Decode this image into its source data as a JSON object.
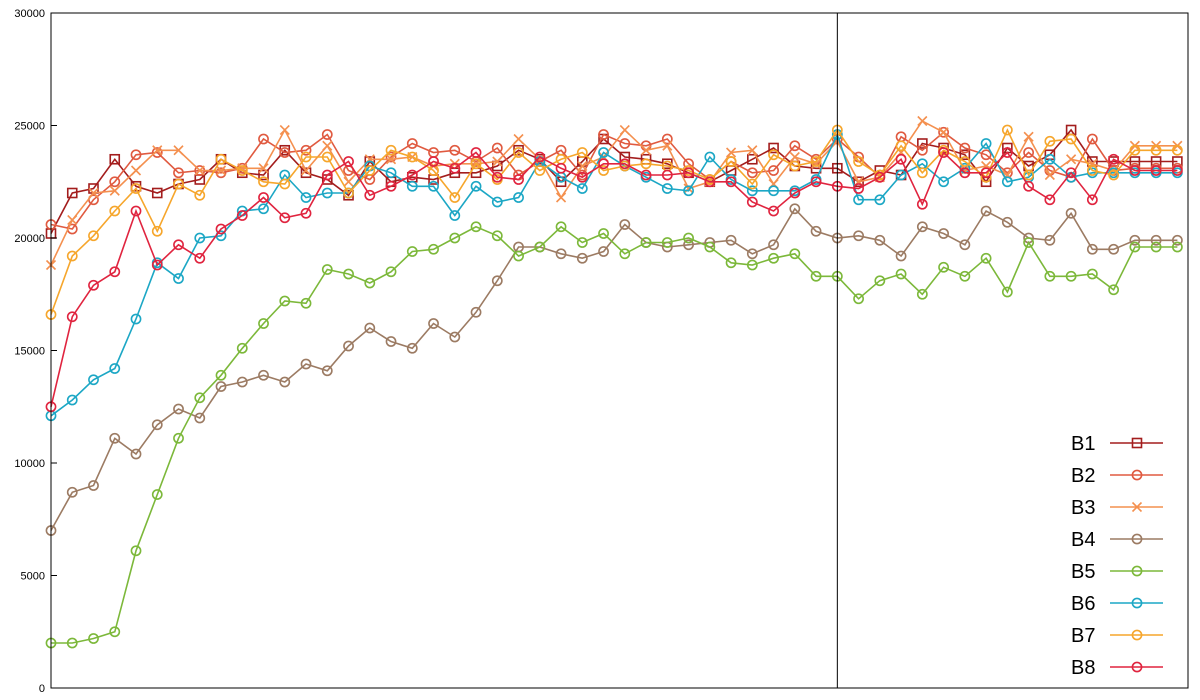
{
  "chart_data": {
    "type": "line",
    "title": "",
    "xlabel": "",
    "ylabel": "",
    "x": [
      1,
      2,
      3,
      4,
      5,
      6,
      7,
      8,
      9,
      10,
      11,
      12,
      13,
      14,
      15,
      16,
      17,
      18,
      19,
      20,
      21,
      22,
      23,
      24,
      25,
      26,
      27,
      28,
      29,
      30,
      31,
      32,
      33,
      34,
      35,
      36,
      37,
      38,
      39,
      40,
      41,
      42,
      43,
      44,
      45,
      46,
      47,
      48,
      49,
      50,
      51,
      52,
      53,
      54
    ],
    "xlim": [
      1,
      54.5
    ],
    "ylim": [
      0,
      30000
    ],
    "yticks": [
      0,
      5000,
      10000,
      15000,
      20000,
      25000,
      30000
    ],
    "ytick_labels": [
      "0",
      "5000",
      "10000",
      "15000",
      "20000",
      "25000",
      "30000"
    ],
    "vertical_line_x": 38,
    "legend_position": "bottom-right",
    "grid": false,
    "series": [
      {
        "name": "B1",
        "color": "#a31d1d",
        "marker": "square",
        "values": [
          20200,
          22000,
          22200,
          23500,
          22300,
          22000,
          22400,
          22600,
          23500,
          22900,
          22800,
          23900,
          22900,
          22600,
          21900,
          23400,
          22500,
          22700,
          22600,
          22900,
          22900,
          23200,
          23900,
          23500,
          22500,
          23400,
          24400,
          23600,
          23500,
          23300,
          22900,
          22500,
          23000,
          23500,
          24000,
          23200,
          23100,
          23100,
          22500,
          23000,
          22800,
          24200,
          24000,
          23700,
          22500,
          24000,
          23200,
          23700,
          24800,
          23400,
          23400,
          23400,
          23400,
          23400
        ]
      },
      {
        "name": "B2",
        "color": "#e05a40",
        "marker": "circle",
        "values": [
          20600,
          20400,
          21700,
          22500,
          23700,
          23800,
          22900,
          23000,
          22900,
          23100,
          24400,
          23800,
          23900,
          24600,
          23000,
          22600,
          23600,
          24200,
          23800,
          23900,
          23400,
          24000,
          22800,
          23400,
          23900,
          22800,
          24600,
          24200,
          24100,
          24400,
          23300,
          22600,
          23400,
          22900,
          23000,
          24100,
          23500,
          24400,
          23600,
          22700,
          24500,
          23900,
          24700,
          24000,
          23700,
          22900,
          23800,
          23000,
          22700,
          24400,
          23000,
          23100,
          23100,
          23100
        ]
      },
      {
        "name": "B3",
        "color": "#f4904f",
        "marker": "x",
        "values": [
          18800,
          20800,
          22000,
          22100,
          23000,
          23900,
          23900,
          23000,
          23000,
          23100,
          23100,
          24800,
          23000,
          24100,
          22500,
          23500,
          23500,
          23600,
          23200,
          23300,
          23300,
          23400,
          24400,
          23500,
          21800,
          23200,
          23600,
          24800,
          23900,
          24100,
          22200,
          22500,
          23800,
          23900,
          22400,
          23600,
          23300,
          24300,
          22500,
          22700,
          23800,
          25200,
          24700,
          23000,
          23200,
          22800,
          24500,
          22800,
          23500,
          23300,
          23000,
          24100,
          24100,
          24100
        ]
      },
      {
        "name": "B4",
        "color": "#9c7b63",
        "marker": "circle",
        "values": [
          7000,
          8700,
          9000,
          11100,
          10400,
          11700,
          12400,
          12000,
          13400,
          13600,
          13900,
          13600,
          14400,
          14100,
          15200,
          16000,
          15400,
          15100,
          16200,
          15600,
          16700,
          18100,
          19600,
          19600,
          19300,
          19100,
          19400,
          20600,
          19800,
          19600,
          19700,
          19800,
          19900,
          19300,
          19700,
          21300,
          20300,
          20000,
          20100,
          19900,
          19200,
          20500,
          20200,
          19700,
          21200,
          20700,
          20000,
          19900,
          21100,
          19500,
          19500,
          19900,
          19900,
          19900
        ]
      },
      {
        "name": "B5",
        "color": "#7cb83a",
        "marker": "circle",
        "values": [
          2000,
          2000,
          2200,
          2500,
          6100,
          8600,
          11100,
          12900,
          13900,
          15100,
          16200,
          17200,
          17100,
          18600,
          18400,
          18000,
          18500,
          19400,
          19500,
          20000,
          20500,
          20100,
          19200,
          19600,
          20500,
          19800,
          20200,
          19300,
          19800,
          19800,
          20000,
          19600,
          18900,
          18800,
          19100,
          19300,
          18300,
          18300,
          17300,
          18100,
          18400,
          17500,
          18700,
          18300,
          19100,
          17600,
          19800,
          18300,
          18300,
          18400,
          17700,
          19600,
          19600,
          19600
        ]
      },
      {
        "name": "B6",
        "color": "#1ca7c5",
        "marker": "circle",
        "values": [
          12100,
          12800,
          13700,
          14200,
          16400,
          18900,
          18200,
          20000,
          20100,
          21200,
          21300,
          22800,
          21800,
          22000,
          22000,
          23200,
          22900,
          22300,
          22300,
          21000,
          22300,
          21600,
          21800,
          23400,
          22700,
          22200,
          23800,
          23200,
          22700,
          22200,
          22100,
          23600,
          22600,
          22100,
          22100,
          22100,
          22600,
          24600,
          21700,
          21700,
          22800,
          23300,
          22500,
          23100,
          24200,
          22500,
          22700,
          23500,
          22700,
          22900,
          22900,
          22900,
          22900,
          22900
        ]
      },
      {
        "name": "B7",
        "color": "#f6a62c",
        "marker": "circle",
        "values": [
          16600,
          19200,
          20100,
          21200,
          22200,
          20300,
          22400,
          21900,
          23500,
          23000,
          22500,
          22400,
          23600,
          23600,
          22000,
          23000,
          23900,
          23600,
          23000,
          21800,
          23300,
          22600,
          23800,
          23000,
          23500,
          23800,
          23000,
          23200,
          23300,
          23200,
          23000,
          22600,
          23400,
          22400,
          23700,
          23200,
          23400,
          24800,
          23400,
          22800,
          24100,
          22900,
          23900,
          23400,
          22700,
          24800,
          22800,
          24300,
          24400,
          23000,
          22800,
          23900,
          23900,
          23900
        ]
      },
      {
        "name": "B8",
        "color": "#e0243f",
        "marker": "circle",
        "values": [
          12500,
          16500,
          17900,
          18500,
          21200,
          18800,
          19700,
          19100,
          20400,
          21000,
          21800,
          20900,
          21100,
          22800,
          23400,
          21900,
          22300,
          22800,
          23400,
          23100,
          23800,
          22700,
          22600,
          23600,
          23100,
          22700,
          23300,
          23300,
          22800,
          22800,
          22900,
          22500,
          22500,
          21600,
          21200,
          22000,
          22500,
          22300,
          22200,
          22700,
          23500,
          21500,
          23800,
          22900,
          22900,
          23800,
          22300,
          21700,
          22900,
          21700,
          23500,
          23000,
          23000,
          23000
        ]
      }
    ]
  }
}
